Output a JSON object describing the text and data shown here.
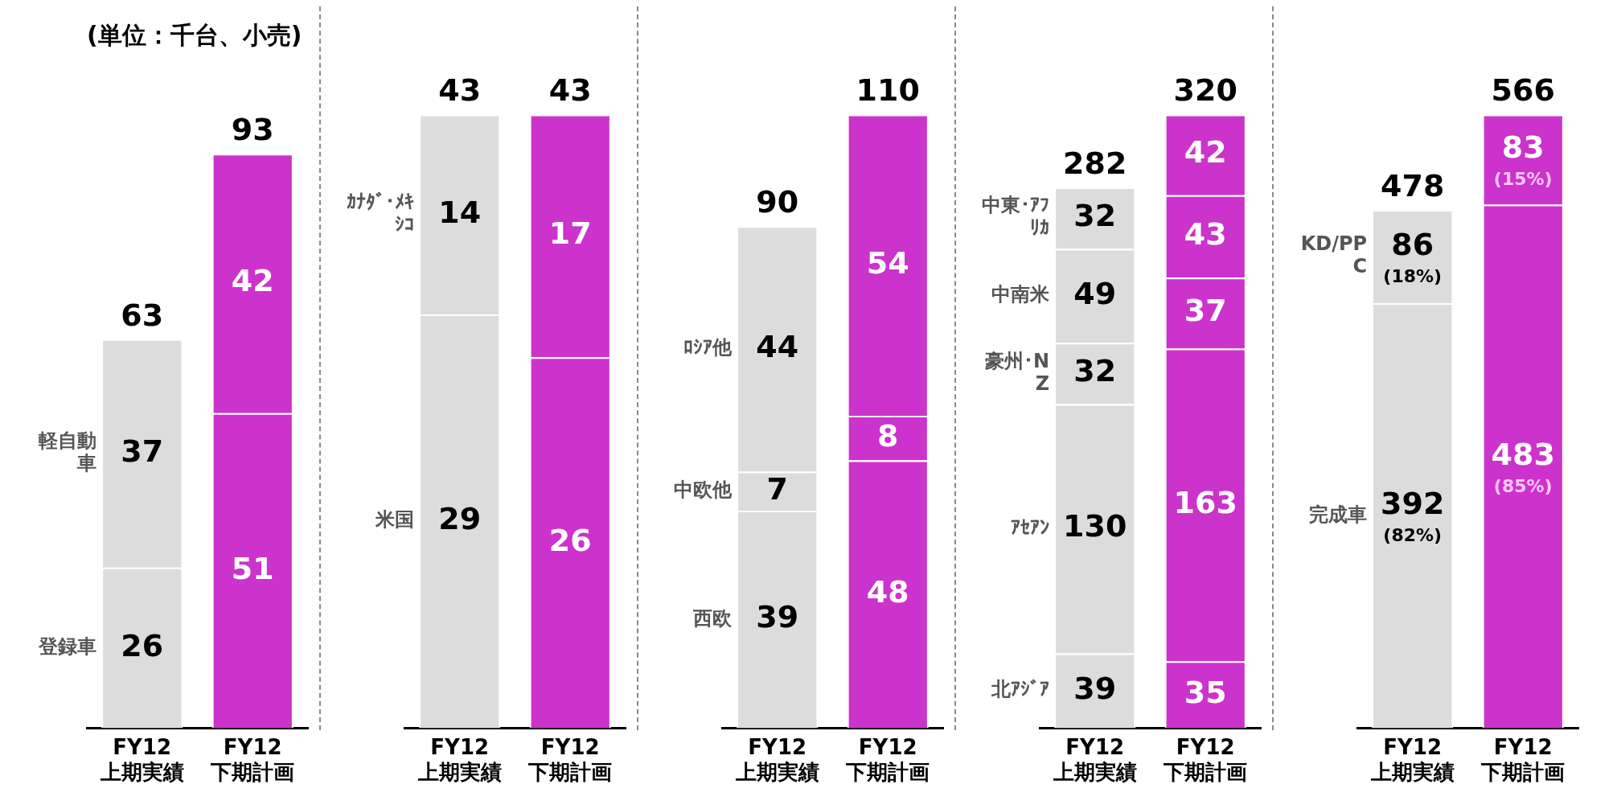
{
  "chart_data": [
    {
      "type": "bar",
      "title": "(単位：千台、小売)",
      "stacked": true,
      "data_labels": true,
      "categories": [
        "FY12 上期実績",
        "FY12 下期計画"
      ],
      "totals": [
        "63",
        "93"
      ],
      "series": [
        {
          "name": "登録車",
          "colors": [
            "#dcdcdc",
            "#cc33cc"
          ],
          "values": [
            26,
            51
          ]
        },
        {
          "name": "軽自動車",
          "colors": [
            "#dcdcdc",
            "#cc33cc"
          ],
          "values": [
            37,
            42
          ]
        }
      ]
    },
    {
      "type": "bar",
      "stacked": true,
      "data_labels": true,
      "categories": [
        "FY12 上期実績",
        "FY12 下期計画"
      ],
      "totals": [
        "43",
        "43"
      ],
      "series": [
        {
          "name": "米国",
          "colors": [
            "#dcdcdc",
            "#cc33cc"
          ],
          "values": [
            29,
            26
          ]
        },
        {
          "name": "ｶﾅﾀﾞ･ﾒｷｼｺ",
          "colors": [
            "#dcdcdc",
            "#cc33cc"
          ],
          "values": [
            14,
            17
          ]
        }
      ]
    },
    {
      "type": "bar",
      "stacked": true,
      "data_labels": true,
      "categories": [
        "FY12 上期実績",
        "FY12 下期計画"
      ],
      "totals": [
        "90",
        "110"
      ],
      "series": [
        {
          "name": "西欧",
          "colors": [
            "#dcdcdc",
            "#cc33cc"
          ],
          "values": [
            39,
            48
          ]
        },
        {
          "name": "中欧他",
          "colors": [
            "#dcdcdc",
            "#cc33cc"
          ],
          "values": [
            7,
            8
          ]
        },
        {
          "name": "ﾛｼｱ他",
          "colors": [
            "#dcdcdc",
            "#cc33cc"
          ],
          "values": [
            44,
            54
          ]
        }
      ]
    },
    {
      "type": "bar",
      "stacked": true,
      "data_labels": true,
      "categories": [
        "FY12 上期実績",
        "FY12 下期計画"
      ],
      "totals": [
        "282",
        "320"
      ],
      "series": [
        {
          "name": "北ｱｼﾞｱ",
          "colors": [
            "#dcdcdc",
            "#cc33cc"
          ],
          "values": [
            39,
            35
          ]
        },
        {
          "name": "ｱｾｱﾝ",
          "colors": [
            "#dcdcdc",
            "#cc33cc"
          ],
          "values": [
            130,
            163
          ]
        },
        {
          "name": "豪州･NZ",
          "colors": [
            "#dcdcdc",
            "#cc33cc"
          ],
          "values": [
            32,
            37
          ]
        },
        {
          "name": "中南米",
          "colors": [
            "#dcdcdc",
            "#cc33cc"
          ],
          "values": [
            49,
            43
          ]
        },
        {
          "name": "中東･ｱﾌﾘｶ",
          "colors": [
            "#dcdcdc",
            "#cc33cc"
          ],
          "values": [
            32,
            42
          ]
        }
      ]
    },
    {
      "type": "bar",
      "stacked": true,
      "categories": [
        "FY12 上期実績",
        "FY12 下期計画"
      ],
      "totals": [
        "478",
        "566"
      ],
      "series": [
        {
          "name": "完成車",
          "colors": [
            "#dcdcdc",
            "#cc33cc"
          ],
          "values": [
            392,
            483
          ],
          "value_labels": [
            "392\n(82%)",
            "483\n(85%)"
          ]
        },
        {
          "name": "KD/PPC",
          "colors": [
            "#dcdcdc",
            "#cc33cc"
          ],
          "values": [
            86,
            83
          ],
          "value_labels": [
            "86\n(18%)",
            "83\n(15%)"
          ]
        }
      ]
    }
  ]
}
